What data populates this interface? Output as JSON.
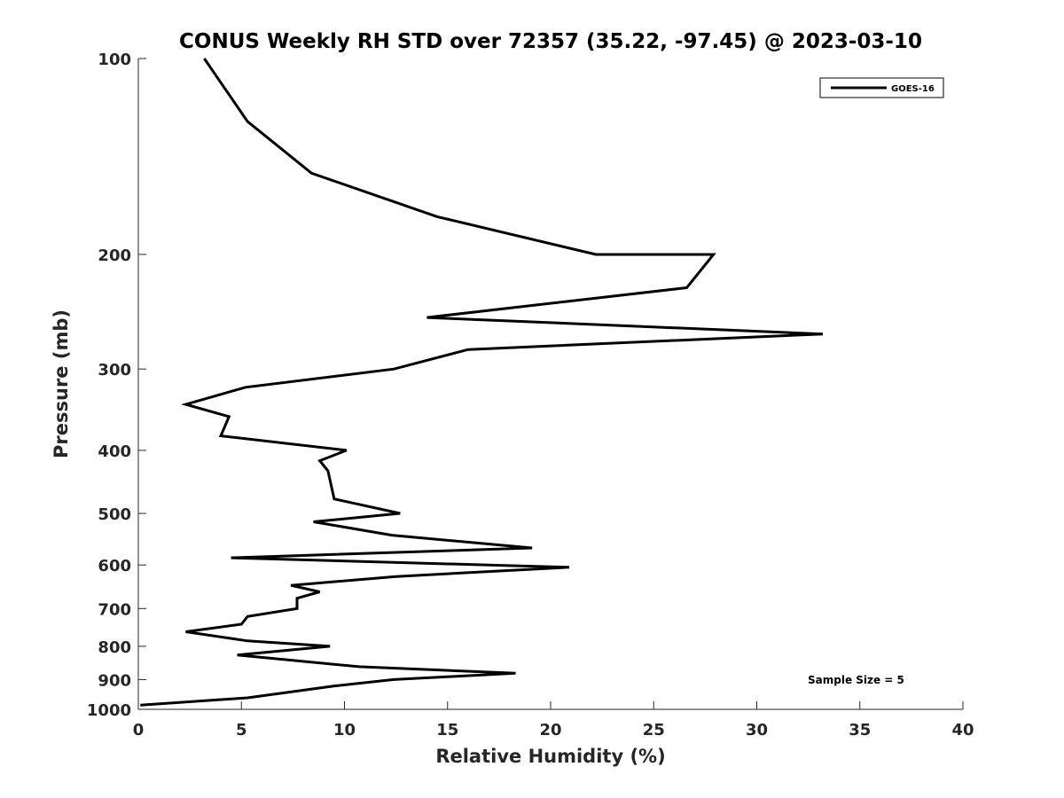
{
  "chart_data": {
    "type": "line",
    "title": "CONUS Weekly RH STD over 72357 (35.22, -97.45) @ 2023-03-10",
    "xlabel": "Relative Humidity (%)",
    "ylabel": "Pressure (mb)",
    "xlim": [
      0,
      40
    ],
    "ylim": [
      100,
      1000
    ],
    "yscale": "log",
    "yreversed": true,
    "x_ticks": [
      0,
      5,
      10,
      15,
      20,
      25,
      30,
      35,
      40
    ],
    "y_ticks": [
      100,
      200,
      300,
      400,
      500,
      600,
      700,
      800,
      900,
      1000
    ],
    "legend_position": "top-right",
    "grid": false,
    "annotation": "Sample Size = 5",
    "series": [
      {
        "name": "GOES-16",
        "color": "#000000",
        "points": [
          [
            3.2,
            100
          ],
          [
            5.3,
            125
          ],
          [
            8.4,
            150
          ],
          [
            14.5,
            175
          ],
          [
            22.2,
            200
          ],
          [
            27.9,
            200
          ],
          [
            26.6,
            225
          ],
          [
            14.0,
            250
          ],
          [
            33.2,
            265
          ],
          [
            16.0,
            280
          ],
          [
            12.4,
            300
          ],
          [
            5.2,
            320
          ],
          [
            2.3,
            340
          ],
          [
            4.4,
            355
          ],
          [
            4.0,
            380
          ],
          [
            10.1,
            400
          ],
          [
            8.8,
            415
          ],
          [
            9.2,
            430
          ],
          [
            9.5,
            475
          ],
          [
            12.7,
            500
          ],
          [
            8.5,
            515
          ],
          [
            12.3,
            540
          ],
          [
            19.1,
            565
          ],
          [
            4.5,
            585
          ],
          [
            20.9,
            605
          ],
          [
            12.5,
            625
          ],
          [
            7.4,
            645
          ],
          [
            8.8,
            660
          ],
          [
            7.7,
            675
          ],
          [
            7.7,
            700
          ],
          [
            5.3,
            720
          ],
          [
            5.0,
            740
          ],
          [
            2.3,
            760
          ],
          [
            5.3,
            785
          ],
          [
            9.3,
            800
          ],
          [
            4.8,
            825
          ],
          [
            10.7,
            860
          ],
          [
            18.3,
            880
          ],
          [
            12.4,
            900
          ],
          [
            9.6,
            920
          ],
          [
            5.3,
            960
          ],
          [
            0.1,
            985
          ]
        ]
      }
    ]
  }
}
